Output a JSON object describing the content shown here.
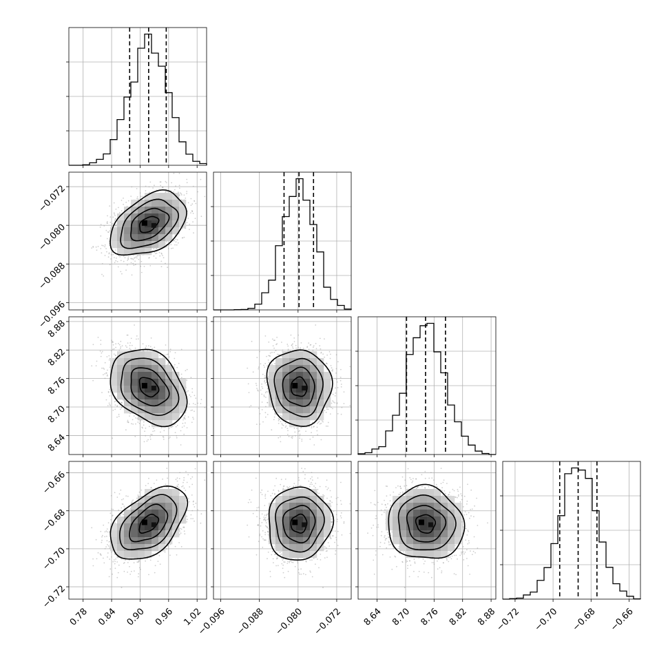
{
  "chart_data": {
    "type": "corner",
    "grid": true,
    "colors": {
      "line": "#000000",
      "grid": "#b0b0b0",
      "scatter": "#9e9e9e"
    },
    "parameters": [
      {
        "mean": 0.918,
        "sd": 0.04,
        "quantiles": [
          0.878,
          0.918,
          0.955
        ],
        "range": [
          0.75,
          1.04
        ],
        "ticks": [
          0.78,
          0.84,
          0.9,
          0.96,
          1.02
        ],
        "tick_labels": [
          "0.78",
          "0.84",
          "0.90",
          "0.96",
          "1.02"
        ]
      },
      {
        "mean": -0.0798,
        "sd": 0.0033,
        "quantiles": [
          -0.0829,
          -0.0798,
          -0.0768
        ],
        "range": [
          -0.0975,
          -0.069
        ],
        "ticks": [
          -0.096,
          -0.088,
          -0.08,
          -0.072
        ],
        "tick_labels": [
          "−0.096",
          "−0.088",
          "−0.080",
          "−0.072"
        ]
      },
      {
        "mean": 8.742,
        "sd": 0.04,
        "quantiles": [
          8.702,
          8.742,
          8.784
        ],
        "range": [
          8.6,
          8.89
        ],
        "ticks": [
          8.64,
          8.7,
          8.76,
          8.82,
          8.88
        ],
        "tick_labels": [
          "8.64",
          "8.70",
          "8.76",
          "8.82",
          "8.88"
        ]
      },
      {
        "mean": -0.6868,
        "sd": 0.0096,
        "quantiles": [
          -0.6965,
          -0.6868,
          -0.6769
        ],
        "range": [
          -0.7265,
          -0.654
        ],
        "ticks": [
          -0.72,
          -0.7,
          -0.68,
          -0.66
        ],
        "tick_labels": [
          "−0.72",
          "−0.70",
          "−0.68",
          "−0.66"
        ]
      }
    ],
    "correlations": [
      {
        "pair": [
          0,
          1
        ],
        "rho": 0.42
      },
      {
        "pair": [
          0,
          2
        ],
        "rho": -0.32
      },
      {
        "pair": [
          0,
          3
        ],
        "rho": 0.48
      },
      {
        "pair": [
          1,
          2
        ],
        "rho": -0.04
      },
      {
        "pair": [
          1,
          3
        ],
        "rho": 0.04
      },
      {
        "pair": [
          2,
          3
        ],
        "rho": -0.06
      }
    ]
  }
}
